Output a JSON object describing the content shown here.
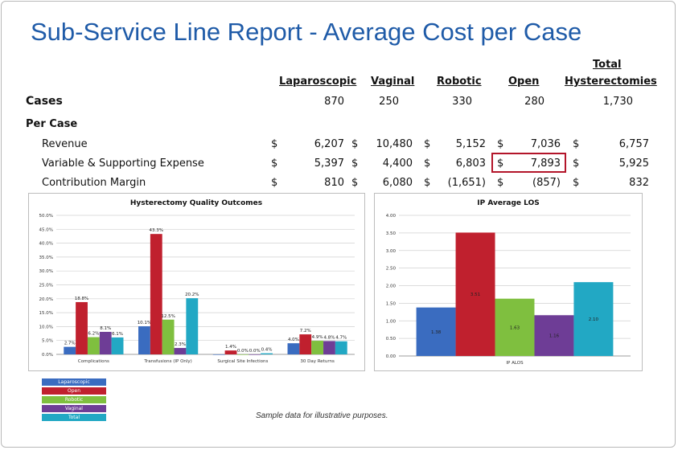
{
  "title": "Sub-Service Line Report - Average Cost per Case",
  "table": {
    "headers": {
      "laparoscopic": "Laparoscopic",
      "vaginal": "Vaginal",
      "robotic": "Robotic",
      "open": "Open",
      "total_line1": "Total",
      "total_line2": "Hysterectomies"
    },
    "cases_label": "Cases",
    "cases": [
      "870",
      "250",
      "330",
      "280",
      "1,730"
    ],
    "per_case_label": "Per Case",
    "dollar_sign": "$",
    "rows": [
      {
        "label": "Revenue",
        "values": [
          "6,207",
          "10,480",
          "5,152",
          "7,036",
          "6,757"
        ]
      },
      {
        "label": "Variable & Supporting Expense",
        "values": [
          "5,397",
          "4,400",
          "6,803",
          "7,893",
          "5,925"
        ]
      },
      {
        "label": "Contribution Margin",
        "values": [
          "810",
          "6,080",
          "(1,651)",
          "(857)",
          "832"
        ]
      }
    ]
  },
  "colors": {
    "laparoscopic": "#3a6cc0",
    "open": "#c0202e",
    "robotic": "#7fbf3f",
    "vaginal": "#6e3d96",
    "total": "#22a8c4",
    "highlight": "#b3152a",
    "title": "#1f5ba8"
  },
  "legend": [
    "Laparoscopic",
    "Open",
    "Robotic",
    "Vaginal",
    "Total"
  ],
  "chart_data": [
    {
      "type": "bar",
      "title": "Hysterectomy Quality Outcomes",
      "categories": [
        "Complications",
        "Transfusions (IP Only)",
        "Surgical Site Infections",
        "30 Day Returns"
      ],
      "ylim": [
        0,
        50
      ],
      "yticks": [
        "0.0%",
        "5.0%",
        "10.0%",
        "15.0%",
        "20.0%",
        "25.0%",
        "30.0%",
        "35.0%",
        "40.0%",
        "45.0%",
        "50.0%"
      ],
      "series": [
        {
          "name": "Laparoscopic",
          "values": [
            2.7,
            10.1,
            0.0,
            4.0
          ],
          "labels": [
            "2.7%",
            "10.1%",
            "",
            "4.0%"
          ]
        },
        {
          "name": "Open",
          "values": [
            18.8,
            43.3,
            1.4,
            7.2
          ],
          "labels": [
            "18.8%",
            "43.3%",
            "1.4%",
            "7.2%"
          ]
        },
        {
          "name": "Robotic",
          "values": [
            6.2,
            12.5,
            0.0,
            4.9
          ],
          "labels": [
            "6.2%",
            "12.5%",
            "0.0%",
            "4.9%"
          ]
        },
        {
          "name": "Vaginal",
          "values": [
            8.1,
            2.3,
            0.0,
            4.8
          ],
          "labels": [
            "8.1%",
            "2.3%",
            "0.0%",
            "4.8%"
          ]
        },
        {
          "name": "Total",
          "values": [
            6.1,
            20.2,
            0.4,
            4.7
          ],
          "labels": [
            "6.1%",
            "20.2%",
            "0.4%",
            "4.7%"
          ]
        }
      ],
      "grid": true
    },
    {
      "type": "bar",
      "title": "IP Average LOS",
      "categories": [
        "IP ALOS"
      ],
      "ylim": [
        0,
        4
      ],
      "yticks": [
        "0.00",
        "0.50",
        "1.00",
        "1.50",
        "2.00",
        "2.50",
        "3.00",
        "3.50",
        "4.00"
      ],
      "series": [
        {
          "name": "Laparoscopic",
          "values": [
            1.38
          ],
          "labels": [
            "1.38"
          ]
        },
        {
          "name": "Open",
          "values": [
            3.51
          ],
          "labels": [
            "3.51"
          ]
        },
        {
          "name": "Robotic",
          "values": [
            1.63
          ],
          "labels": [
            "1.63"
          ]
        },
        {
          "name": "Vaginal",
          "values": [
            1.16
          ],
          "labels": [
            "1.16"
          ]
        },
        {
          "name": "Total",
          "values": [
            2.1
          ],
          "labels": [
            "2.10"
          ]
        }
      ],
      "grid": true
    }
  ],
  "footnote": "Sample data for illustrative purposes."
}
